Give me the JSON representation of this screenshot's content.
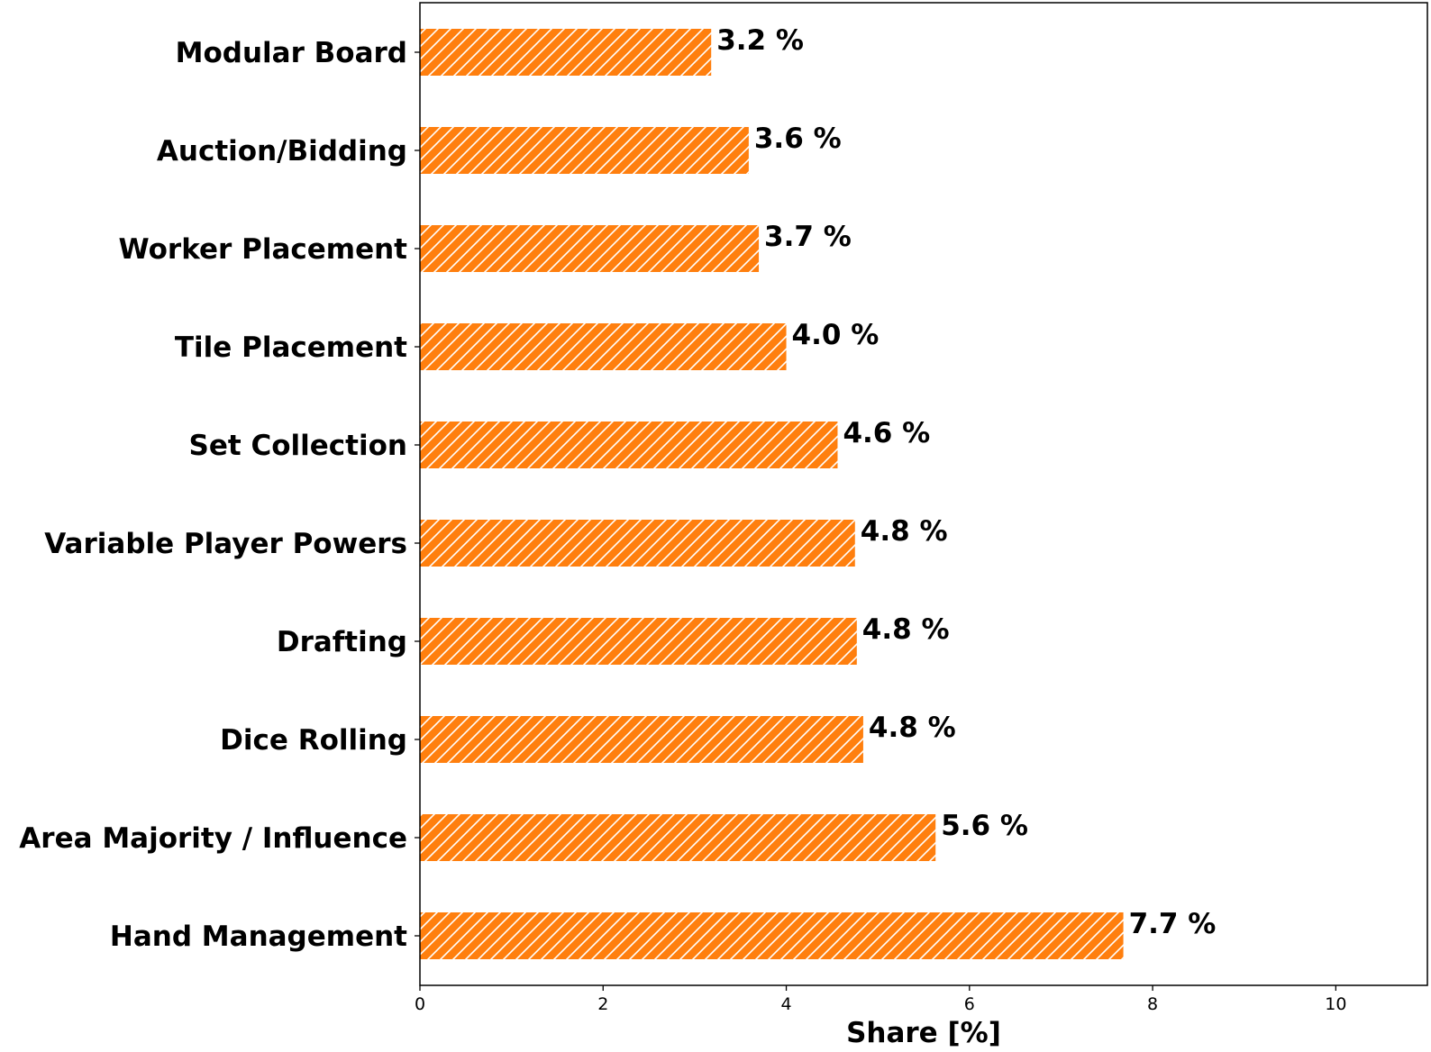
{
  "chart_data": {
    "type": "bar",
    "orientation": "horizontal",
    "categories": [
      "Hand Management",
      "Area Majority / Influence",
      "Dice Rolling",
      "Drafting",
      "Variable Player Powers",
      "Set Collection",
      "Tile Placement",
      "Worker Placement",
      "Auction/Bidding",
      "Modular Board"
    ],
    "values": [
      7.68,
      5.63,
      4.84,
      4.77,
      4.75,
      4.56,
      4.0,
      3.7,
      3.59,
      3.18
    ],
    "value_labels": [
      "7.7 %",
      "5.6 %",
      "4.8 %",
      "4.8 %",
      "4.8 %",
      "4.6 %",
      "4.0 %",
      "3.7 %",
      "3.6 %",
      "3.2 %"
    ],
    "xlabel": "Share [%]",
    "ylabel": "",
    "title": "",
    "xlim": [
      0,
      11
    ],
    "xticks": [
      "0",
      "2",
      "4",
      "6",
      "8",
      "10"
    ],
    "xtick_values": [
      0,
      2,
      4,
      6,
      8,
      10
    ],
    "bar_color": "#ff7f0e",
    "hatch": "diagonal-white",
    "grid": false,
    "legend": "none"
  }
}
